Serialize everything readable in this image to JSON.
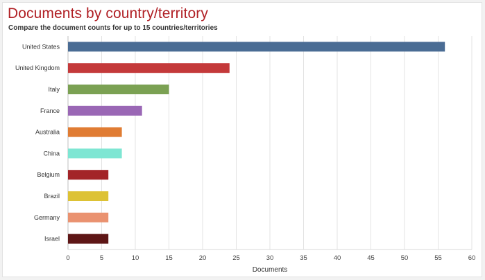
{
  "chart_data": {
    "type": "bar",
    "orientation": "horizontal",
    "title": "Documents by country/territory",
    "subtitle": "Compare the document counts for up to 15 countries/territories",
    "categories": [
      "United States",
      "United Kingdom",
      "Italy",
      "France",
      "Australia",
      "China",
      "Belgium",
      "Brazil",
      "Germany",
      "Israel"
    ],
    "values": [
      56,
      24,
      15,
      11,
      8,
      8,
      6,
      6,
      6,
      6
    ],
    "colors": [
      "#4a6c94",
      "#c4393a",
      "#7ba153",
      "#9a67b5",
      "#e07c33",
      "#7ee6d3",
      "#a32428",
      "#ddc235",
      "#ea9270",
      "#5e1616"
    ],
    "xlabel": "Documents",
    "ylabel": "",
    "xlim": [
      0,
      60
    ],
    "xticks": [
      0,
      5,
      10,
      15,
      20,
      25,
      30,
      35,
      40,
      45,
      50,
      55,
      60
    ],
    "grid": true,
    "legend": "none"
  }
}
